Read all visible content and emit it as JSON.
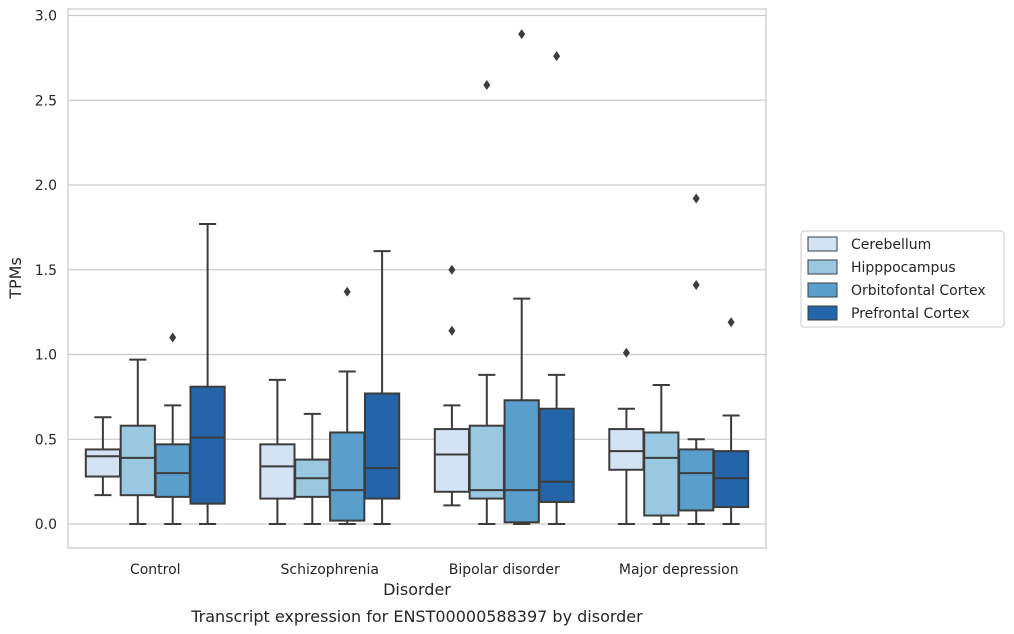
{
  "chart_data": {
    "type": "box",
    "title": "Transcript expression for ENST00000588397 by disorder",
    "xlabel": "Disorder",
    "ylabel": "TPMs",
    "ylim": [
      -0.14,
      3.04
    ],
    "yticks": [
      "0.0",
      "0.5",
      "1.0",
      "1.5",
      "2.0",
      "2.5",
      "3.0"
    ],
    "categories": [
      "Control",
      "Schizophrenia",
      "Bipolar disorder",
      "Major depression"
    ],
    "grid": "horizontal",
    "legend_position": "right",
    "series": [
      {
        "name": "Cerebellum",
        "color": "#d3e3f3",
        "boxes": [
          {
            "whislo": 0.17,
            "q1": 0.28,
            "med": 0.4,
            "q3": 0.44,
            "whishi": 0.63,
            "fliers": []
          },
          {
            "whislo": 0.0,
            "q1": 0.15,
            "med": 0.34,
            "q3": 0.47,
            "whishi": 0.85,
            "fliers": []
          },
          {
            "whislo": 0.11,
            "q1": 0.19,
            "med": 0.41,
            "q3": 0.56,
            "whishi": 0.7,
            "fliers": [
              1.14,
              1.5
            ]
          },
          {
            "whislo": 0.0,
            "q1": 0.32,
            "med": 0.43,
            "q3": 0.56,
            "whishi": 0.68,
            "fliers": [
              1.01
            ]
          }
        ]
      },
      {
        "name": "Hipppocampus",
        "color": "#9ac8e0",
        "boxes": [
          {
            "whislo": 0.0,
            "q1": 0.17,
            "med": 0.39,
            "q3": 0.58,
            "whishi": 0.97,
            "fliers": []
          },
          {
            "whislo": 0.0,
            "q1": 0.16,
            "med": 0.27,
            "q3": 0.38,
            "whishi": 0.65,
            "fliers": []
          },
          {
            "whislo": 0.0,
            "q1": 0.15,
            "med": 0.2,
            "q3": 0.58,
            "whishi": 0.88,
            "fliers": [
              2.59
            ]
          },
          {
            "whislo": 0.0,
            "q1": 0.05,
            "med": 0.39,
            "q3": 0.54,
            "whishi": 0.82,
            "fliers": []
          }
        ]
      },
      {
        "name": "Orbitofontal Cortex",
        "color": "#5a9fcc",
        "boxes": [
          {
            "whislo": 0.0,
            "q1": 0.16,
            "med": 0.3,
            "q3": 0.47,
            "whishi": 0.7,
            "fliers": [
              1.1
            ]
          },
          {
            "whislo": 0.0,
            "q1": 0.02,
            "med": 0.2,
            "q3": 0.54,
            "whishi": 0.9,
            "fliers": [
              1.37
            ]
          },
          {
            "whislo": 0.0,
            "q1": 0.01,
            "med": 0.2,
            "q3": 0.73,
            "whishi": 1.33,
            "fliers": [
              2.89
            ]
          },
          {
            "whislo": 0.0,
            "q1": 0.08,
            "med": 0.3,
            "q3": 0.44,
            "whishi": 0.5,
            "fliers": [
              1.41,
              1.92
            ]
          }
        ]
      },
      {
        "name": "Prefrontal Cortex",
        "color": "#2464a8",
        "boxes": [
          {
            "whislo": 0.0,
            "q1": 0.12,
            "med": 0.51,
            "q3": 0.81,
            "whishi": 1.77,
            "fliers": []
          },
          {
            "whislo": 0.0,
            "q1": 0.15,
            "med": 0.33,
            "q3": 0.77,
            "whishi": 1.61,
            "fliers": []
          },
          {
            "whislo": 0.0,
            "q1": 0.13,
            "med": 0.25,
            "q3": 0.68,
            "whishi": 0.88,
            "fliers": [
              2.76
            ]
          },
          {
            "whislo": 0.0,
            "q1": 0.1,
            "med": 0.27,
            "q3": 0.43,
            "whishi": 0.64,
            "fliers": [
              1.19
            ]
          }
        ]
      }
    ]
  }
}
